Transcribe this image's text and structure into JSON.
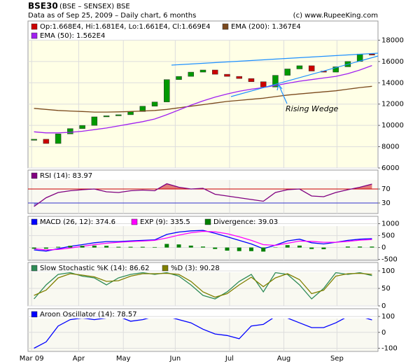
{
  "chart_data": [
    {
      "type": "candlestick",
      "title": "BSE30",
      "subtitle": "(BSE – SENSEX) BSE",
      "note": "Data as of Sep 25, 2009 – Daily chart, 6 months",
      "credit": "(c) www.RupeeKing.com",
      "annotation": "Rising Wedge",
      "ylim": [
        6000,
        19800
      ],
      "yticks": [
        6000,
        8000,
        10000,
        12000,
        14000,
        16000,
        18000
      ],
      "grid": true,
      "series": [
        {
          "name": "Op:1.668E4, Hi:1.681E4, Lo:1.661E4, Cl:1.669E4",
          "color": "#cc0000",
          "up_color": "#009900",
          "down_color": "#cc0000",
          "values": [
            8700,
            8300,
            9200,
            9700,
            10000,
            10800,
            10900,
            11000,
            11300,
            11800,
            12200,
            14300,
            14600,
            15000,
            15200,
            14800,
            14600,
            14400,
            14100,
            13600,
            14700,
            15300,
            15600,
            15100,
            15000,
            15500,
            16000,
            16700,
            16690
          ]
        },
        {
          "name": "EMA (200): 1.367E4",
          "color": "#7b4a1e",
          "values": [
            11600,
            11500,
            11400,
            11350,
            11300,
            11250,
            11250,
            11270,
            11300,
            11350,
            11400,
            11500,
            11650,
            11800,
            11950,
            12100,
            12250,
            12350,
            12450,
            12550,
            12700,
            12850,
            12950,
            13050,
            13150,
            13250,
            13400,
            13550,
            13670
          ]
        },
        {
          "name": "EMA (50): 1.562E4",
          "color": "#a020f0",
          "values": [
            9400,
            9300,
            9300,
            9350,
            9450,
            9600,
            9750,
            9950,
            10150,
            10350,
            10600,
            11000,
            11450,
            11900,
            12300,
            12650,
            12950,
            13200,
            13400,
            13550,
            13750,
            13950,
            14150,
            14300,
            14450,
            14600,
            14850,
            15200,
            15620
          ]
        }
      ]
    },
    {
      "type": "line",
      "ylim": [
        0,
        124
      ],
      "yticks": [
        30,
        70
      ],
      "ytick_colors": [
        "#3333cc",
        "#cc0000"
      ],
      "series": [
        {
          "name": "RSI (14): 83.97",
          "color": "#800080",
          "values": [
            20,
            45,
            60,
            65,
            68,
            70,
            62,
            60,
            65,
            67,
            65,
            85,
            75,
            70,
            72,
            55,
            50,
            45,
            40,
            35,
            60,
            68,
            70,
            50,
            48,
            60,
            68,
            75,
            83.97
          ]
        }
      ]
    },
    {
      "type": "line",
      "ylim": [
        -540,
        1310
      ],
      "yticks": [
        -500,
        0,
        500,
        1000
      ],
      "grid": true,
      "series": [
        {
          "name": "MACD (26, 12): 374.6",
          "color": "#0000ff",
          "values": [
            -100,
            -150,
            -50,
            50,
            120,
            200,
            250,
            250,
            280,
            300,
            320,
            550,
            650,
            700,
            720,
            600,
            450,
            300,
            150,
            -50,
            100,
            280,
            350,
            200,
            150,
            220,
            300,
            350,
            374.6
          ]
        },
        {
          "name": "EXP (9): 335.5",
          "color": "#ff00ff",
          "values": [
            -50,
            -100,
            -80,
            -20,
            50,
            120,
            180,
            220,
            250,
            270,
            300,
            400,
            520,
            620,
            680,
            660,
            580,
            450,
            300,
            120,
            90,
            180,
            270,
            260,
            220,
            220,
            260,
            310,
            335.5
          ]
        },
        {
          "name": "Divergence: 39.03",
          "color": "#008000",
          "style": "bar",
          "values": [
            -50,
            -50,
            30,
            70,
            70,
            80,
            70,
            30,
            30,
            30,
            20,
            150,
            130,
            80,
            40,
            -60,
            -130,
            -150,
            -150,
            -170,
            10,
            100,
            80,
            -60,
            -70,
            0,
            40,
            40,
            39.03
          ]
        }
      ]
    },
    {
      "type": "line",
      "ylim": [
        0,
        124
      ],
      "yticks": [
        0,
        50,
        100
      ],
      "grid": true,
      "series": [
        {
          "name": "Slow Stochastic %K (14): 86.62",
          "color": "#2e8b57",
          "values": [
            20,
            60,
            90,
            95,
            85,
            80,
            60,
            80,
            90,
            95,
            90,
            95,
            85,
            60,
            30,
            20,
            40,
            70,
            90,
            40,
            95,
            90,
            60,
            20,
            50,
            95,
            90,
            95,
            86.62
          ]
        },
        {
          "name": "%D (3): 90.28",
          "color": "#808000",
          "values": [
            30,
            45,
            80,
            92,
            88,
            83,
            70,
            72,
            85,
            92,
            92,
            93,
            90,
            70,
            40,
            25,
            35,
            60,
            82,
            55,
            80,
            92,
            75,
            35,
            45,
            85,
            92,
            93,
            90.28
          ]
        }
      ]
    },
    {
      "type": "line",
      "ylim": [
        -120,
        149
      ],
      "yticks": [
        -100,
        0,
        100
      ],
      "grid": true,
      "xlim": [
        -0.5,
        28.5
      ],
      "xticks": [
        {
          "value": -0.2,
          "label": "Mar 09"
        },
        {
          "value": 3.7,
          "label": "Apr"
        },
        {
          "value": 7.4,
          "label": "May"
        },
        {
          "value": 11.7,
          "label": "Jun"
        },
        {
          "value": 16.2,
          "label": "Jul"
        },
        {
          "value": 20.7,
          "label": "Aug"
        },
        {
          "value": 25.1,
          "label": "Sep"
        }
      ],
      "series": [
        {
          "name": "Aroon Oscillator (14): 78.57",
          "color": "#0000ff",
          "values": [
            -100,
            -60,
            40,
            80,
            90,
            80,
            90,
            100,
            70,
            80,
            100,
            100,
            80,
            60,
            20,
            -10,
            -20,
            -40,
            40,
            50,
            100,
            90,
            60,
            30,
            30,
            60,
            100,
            100,
            78.57
          ]
        }
      ]
    }
  ]
}
